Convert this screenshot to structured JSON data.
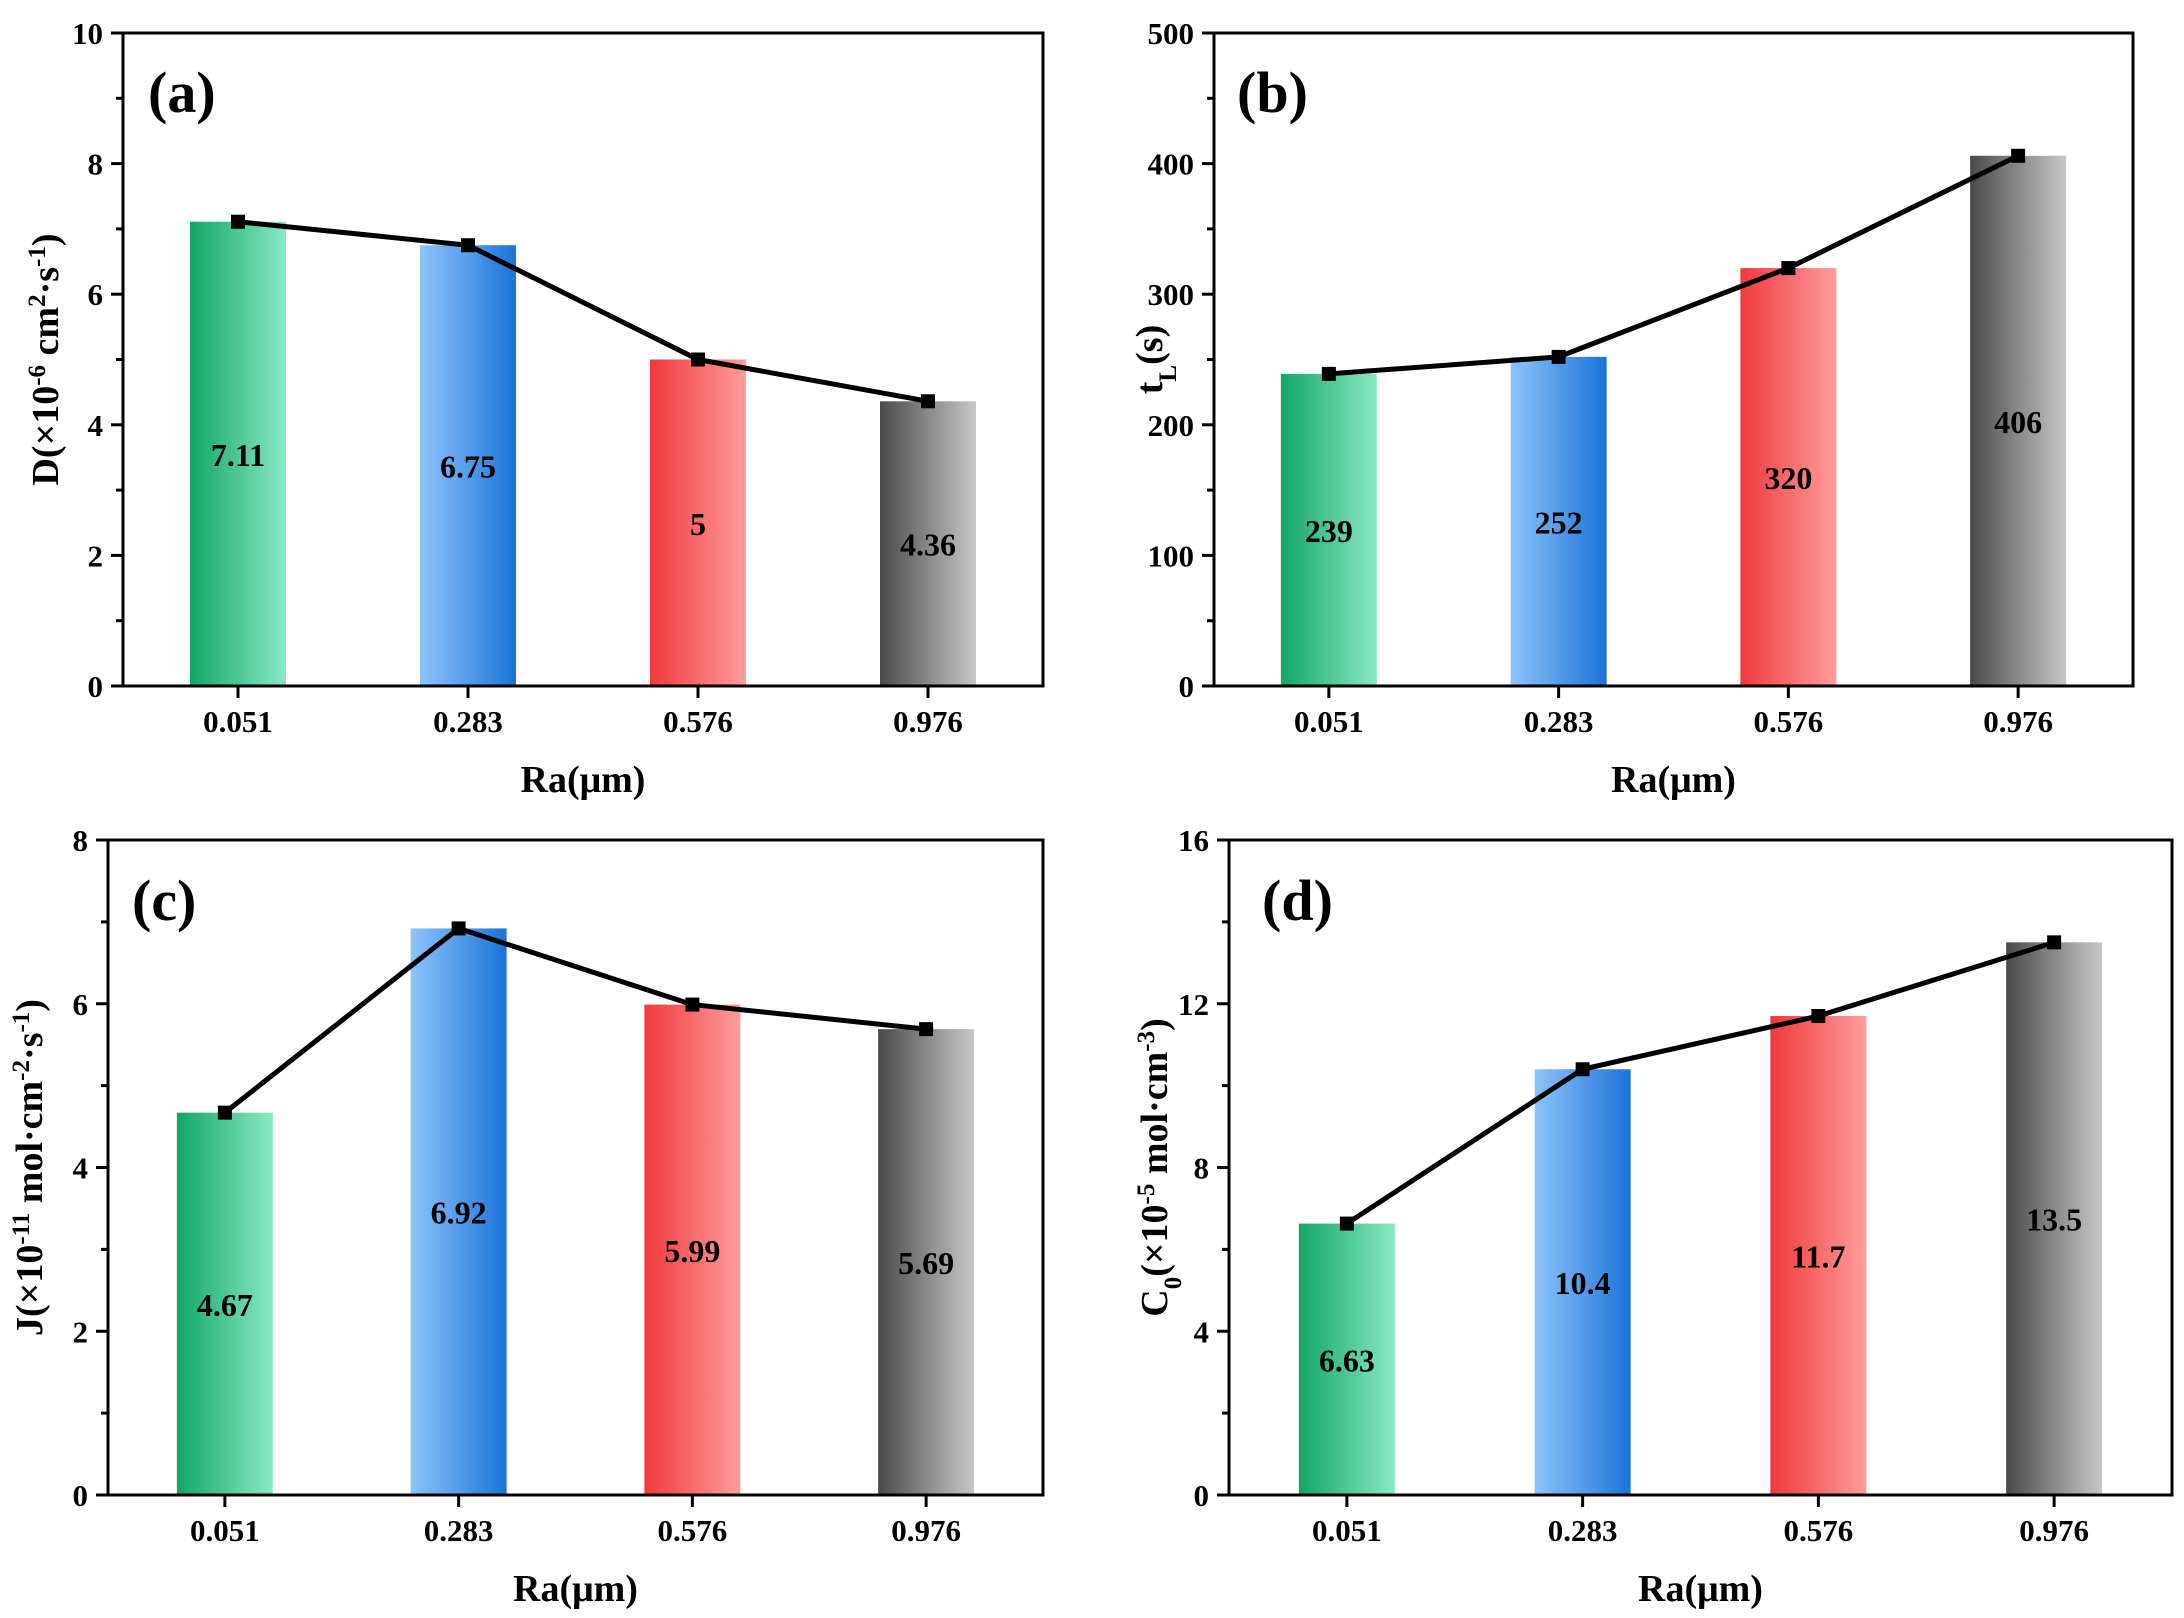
{
  "figure": {
    "x_label": "Ra(μm)"
  },
  "chart_data": [
    {
      "type": "bar",
      "panel": "(a)",
      "categories": [
        "0.051",
        "0.283",
        "0.576",
        "0.976"
      ],
      "values": [
        7.11,
        6.75,
        5,
        4.36
      ],
      "value_labels": [
        "7.11",
        "6.75",
        "5",
        "4.36"
      ],
      "line_overlay": true,
      "ylim": [
        0,
        10
      ],
      "yticks": [
        0,
        2,
        4,
        6,
        8,
        10
      ],
      "ylabel": {
        "main": "D(×10",
        "sup1": "-6",
        "mid": " cm",
        "sup2": "2",
        "mid2": "·s",
        "sup3": "-1",
        "end": ")"
      },
      "xlabel": "Ra(μm)"
    },
    {
      "type": "bar",
      "panel": "(b)",
      "categories": [
        "0.051",
        "0.283",
        "0.576",
        "0.976"
      ],
      "values": [
        239,
        252,
        320,
        406
      ],
      "value_labels": [
        "239",
        "252",
        "320",
        "406"
      ],
      "line_overlay": true,
      "ylim": [
        0,
        500
      ],
      "yticks": [
        0,
        100,
        200,
        300,
        400,
        500
      ],
      "ylabel": {
        "main": "t",
        "sub": "L",
        "end": "(s)"
      },
      "xlabel": "Ra(μm)"
    },
    {
      "type": "bar",
      "panel": "(c)",
      "categories": [
        "0.051",
        "0.283",
        "0.576",
        "0.976"
      ],
      "values": [
        4.67,
        6.92,
        5.99,
        5.69
      ],
      "value_labels": [
        "4.67",
        "6.92",
        "5.99",
        "5.69"
      ],
      "line_overlay": true,
      "ylim": [
        0,
        8
      ],
      "yticks": [
        0,
        2,
        4,
        6,
        8
      ],
      "ylabel": {
        "main": "J(×10",
        "sup1": "-11",
        "mid": " mol·cm",
        "sup2": "-2",
        "mid2": "·s",
        "sup3": "-1",
        "end": ")"
      },
      "xlabel": "Ra(μm)"
    },
    {
      "type": "bar",
      "panel": "(d)",
      "categories": [
        "0.051",
        "0.283",
        "0.576",
        "0.976"
      ],
      "values": [
        6.63,
        10.4,
        11.7,
        13.5
      ],
      "value_labels": [
        "6.63",
        "10.4",
        "11.7",
        "13.5"
      ],
      "line_overlay": true,
      "ylim": [
        0,
        16
      ],
      "yticks": [
        0,
        4,
        8,
        12,
        16
      ],
      "ylabel": {
        "main": "C",
        "sub": "0",
        "end1": "(×10",
        "sup1": "-5",
        "mid": " mol·cm",
        "sup2": "-3",
        "end": ")"
      },
      "xlabel": "Ra(μm)"
    }
  ],
  "colors": {
    "green_dark": "#13a667",
    "green_light": "#8ae9c3",
    "blue_dark": "#1a73d8",
    "blue_light": "#8ec4fa",
    "red_dark": "#f0393c",
    "red_light": "#ff9d9d",
    "gray_dark": "#4a4a4a",
    "gray_light": "#c8c8c8",
    "line": "#000000"
  }
}
